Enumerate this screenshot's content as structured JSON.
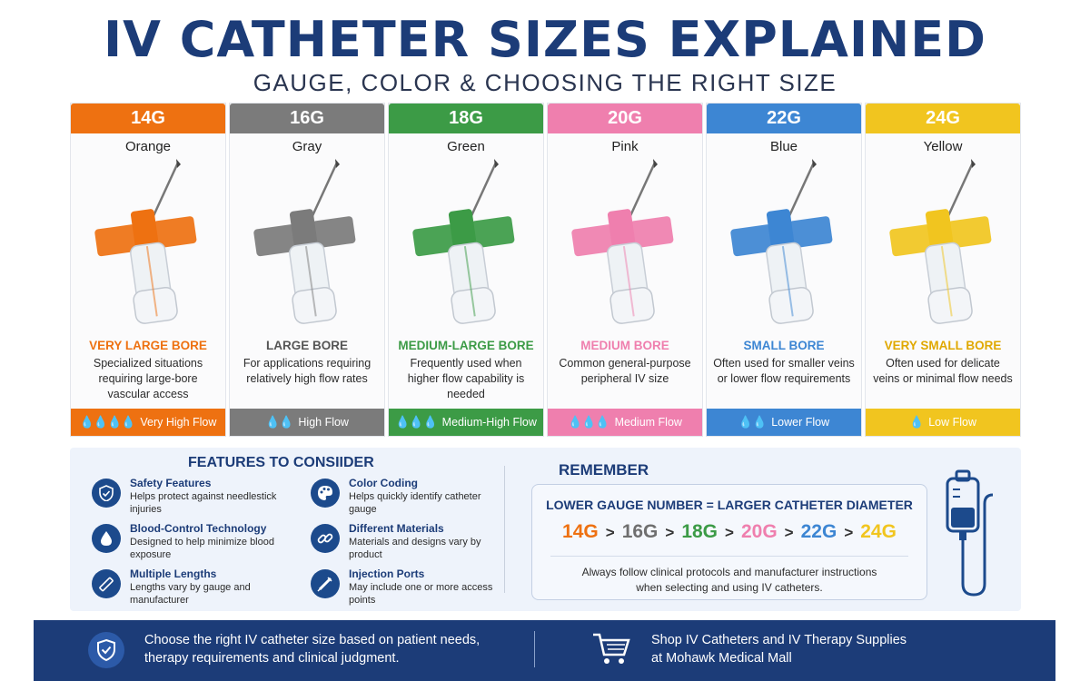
{
  "header": {
    "title": "IV CATHETER SIZES EXPLAINED",
    "subtitle": "GAUGE, COLOR & CHOOSING THE RIGHT SIZE"
  },
  "catheters": [
    {
      "gauge": "14G",
      "color_name": "Orange",
      "hex": "#ee7111",
      "bore": "VERY LARGE BORE",
      "desc": "Specialized situations requiring large-bore vascular access",
      "drops": "💧💧💧💧",
      "flow": "Very High Flow"
    },
    {
      "gauge": "16G",
      "color_name": "Gray",
      "hex": "#7b7b7b",
      "bore": "LARGE BORE",
      "desc": "For applications requiring relatively high flow rates",
      "drops": "💧💧",
      "flow": "High Flow"
    },
    {
      "gauge": "18G",
      "color_name": "Green",
      "hex": "#3c9b46",
      "bore": "MEDIUM-LARGE BORE",
      "desc": "Frequently used when higher flow capability is needed",
      "drops": "💧💧💧",
      "flow": "Medium-High Flow"
    },
    {
      "gauge": "20G",
      "color_name": "Pink",
      "hex": "#ef7fae",
      "bore": "MEDIUM BORE",
      "desc": "Common general-purpose peripheral IV size",
      "drops": "💧💧💧",
      "flow": "Medium Flow"
    },
    {
      "gauge": "22G",
      "color_name": "Blue",
      "hex": "#3d86d3",
      "bore": "SMALL BORE",
      "desc": "Often used for smaller veins or lower flow requirements",
      "drops": "💧💧",
      "flow": "Lower Flow"
    },
    {
      "gauge": "24G",
      "color_name": "Yellow",
      "hex": "#f1c51f",
      "bore": "VERY SMALL BORE",
      "desc": "Often used for delicate veins or minimal flow needs",
      "drops": "💧",
      "flow": "Low Flow"
    }
  ],
  "features": {
    "title": "FEATURES TO CONSIIDER",
    "items": [
      {
        "icon": "shield-icon",
        "name": "Safety Features",
        "text": "Helps protect against needlestick injuries"
      },
      {
        "icon": "palette-icon",
        "name": "Color Coding",
        "text": "Helps quickly identify catheter gauge"
      },
      {
        "icon": "drop-icon",
        "name": "Blood-Control Technology",
        "text": "Designed to help minimize blood exposure"
      },
      {
        "icon": "link-icon",
        "name": "Different Materials",
        "text": "Materials and designs vary by product"
      },
      {
        "icon": "ruler-icon",
        "name": "Multiple Lengths",
        "text": "Lengths vary by gauge and manufacturer"
      },
      {
        "icon": "syringe-icon",
        "name": "Injection Ports",
        "text": "May include one or more access points"
      }
    ]
  },
  "remember": {
    "title": "REMEMBER",
    "rule": "LOWER GAUGE NUMBER = LARGER CATHETER DIAMETER",
    "sequence": [
      "14G",
      "16G",
      "18G",
      "20G",
      "22G",
      "24G"
    ],
    "separator": ">",
    "note_line1": "Always follow clinical protocols and manufacturer instructions",
    "note_line2": "when selecting and using IV catheters."
  },
  "footer": {
    "left_line1": "Choose the right IV catheter size based on patient needs,",
    "left_line2": "therapy requirements and clinical judgment.",
    "right_line1": "Shop IV Catheters and IV Therapy Supplies",
    "right_line2": "at Mohawk Medical Mall"
  },
  "colors": {
    "navy": "#1c3c78",
    "panel": "#eef3fb"
  }
}
